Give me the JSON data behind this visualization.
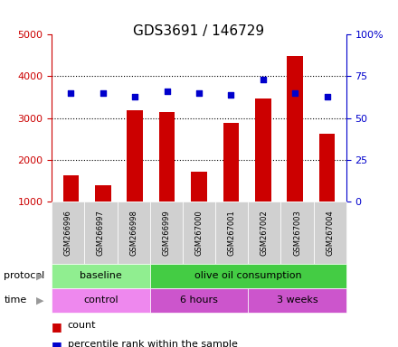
{
  "title": "GDS3691 / 146729",
  "samples": [
    "GSM266996",
    "GSM266997",
    "GSM266998",
    "GSM266999",
    "GSM267000",
    "GSM267001",
    "GSM267002",
    "GSM267003",
    "GSM267004"
  ],
  "counts": [
    1620,
    1380,
    3180,
    3150,
    1700,
    2880,
    3470,
    4480,
    2620
  ],
  "percentile_ranks": [
    65,
    65,
    63,
    66,
    65,
    64,
    73,
    65,
    63
  ],
  "ylim_left": [
    1000,
    5000
  ],
  "ylim_right": [
    0,
    100
  ],
  "yticks_left": [
    1000,
    2000,
    3000,
    4000,
    5000
  ],
  "yticks_right": [
    0,
    25,
    50,
    75,
    100
  ],
  "bar_color": "#cc0000",
  "dot_color": "#0000cc",
  "bar_width": 0.5,
  "protocol_groups": [
    {
      "label": "baseline",
      "start": 0,
      "end": 3,
      "color": "#90ee90"
    },
    {
      "label": "olive oil consumption",
      "start": 3,
      "end": 9,
      "color": "#44cc44"
    }
  ],
  "time_groups": [
    {
      "label": "control",
      "start": 0,
      "end": 3,
      "color": "#ee88ee"
    },
    {
      "label": "6 hours",
      "start": 3,
      "end": 6,
      "color": "#cc55cc"
    },
    {
      "label": "3 weeks",
      "start": 6,
      "end": 9,
      "color": "#cc55cc"
    }
  ],
  "legend_count_label": "count",
  "legend_pct_label": "percentile rank within the sample",
  "left_axis_color": "#cc0000",
  "right_axis_color": "#0000cc",
  "protocol_label": "protocol",
  "time_label": "time",
  "grid_lines": [
    2000,
    3000,
    4000
  ]
}
